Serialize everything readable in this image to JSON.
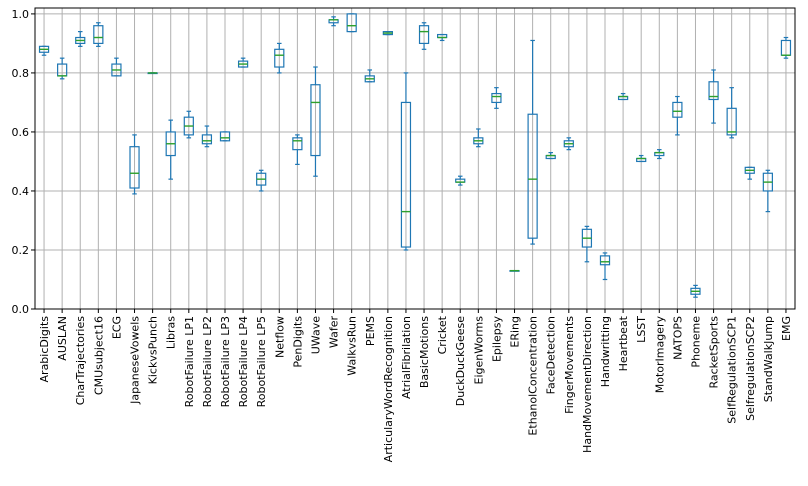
{
  "chart_data": {
    "type": "box",
    "ylim": [
      0.0,
      1.02
    ],
    "yticks": [
      "0.0",
      "0.2",
      "0.4",
      "0.6",
      "0.8",
      "1.0"
    ],
    "grid": true,
    "colors": {
      "box": "#1f77b4",
      "median": "#2ca02c",
      "grid": "#b0b0b0",
      "axis": "#000000"
    },
    "categories": [
      "ArabicDigits",
      "AUSLAN",
      "CharTrajectories",
      "CMUsubject16",
      "ECG",
      "JapaneseVowels",
      "KickvsPunch",
      "Libras",
      "RobotFailure LP1",
      "RobotFailure LP2",
      "RobotFailure LP3",
      "RobotFailure LP4",
      "RobotFailure LP5",
      "Netflow",
      "PenDigits",
      "UWave",
      "Wafer",
      "WalkvsRun",
      "PEMS",
      "ArticularyWordRecognition",
      "AtrialFibrilation",
      "BasicMotions",
      "Cricket",
      "DuckDuckGeese",
      "EigenWorms",
      "Epilepsy",
      "ERing",
      "EthanolConcentration",
      "FaceDetection",
      "FingerMovements",
      "HandMovementDirection",
      "Handwritting",
      "Heartbeat",
      "LSST",
      "MotorImagery",
      "NATOPS",
      "Phoneme",
      "RacketSports",
      "SelfRegulationSCP1",
      "SelfregulationSCP2",
      "StandWalkJump",
      "EMG"
    ],
    "boxes": [
      [
        0.86,
        0.87,
        0.88,
        0.89,
        0.89
      ],
      [
        0.78,
        0.79,
        0.79,
        0.83,
        0.85
      ],
      [
        0.89,
        0.9,
        0.91,
        0.92,
        0.94
      ],
      [
        0.89,
        0.9,
        0.92,
        0.96,
        0.97
      ],
      [
        0.79,
        0.79,
        0.81,
        0.83,
        0.85
      ],
      [
        0.39,
        0.41,
        0.46,
        0.55,
        0.59
      ],
      [
        0.8,
        0.8,
        0.8,
        0.8,
        0.8
      ],
      [
        0.44,
        0.52,
        0.56,
        0.6,
        0.64
      ],
      [
        0.58,
        0.59,
        0.62,
        0.65,
        0.67
      ],
      [
        0.55,
        0.56,
        0.57,
        0.59,
        0.62
      ],
      [
        0.57,
        0.57,
        0.58,
        0.6,
        0.6
      ],
      [
        0.82,
        0.82,
        0.83,
        0.84,
        0.85
      ],
      [
        0.4,
        0.42,
        0.44,
        0.46,
        0.47
      ],
      [
        0.8,
        0.82,
        0.86,
        0.88,
        0.9
      ],
      [
        0.49,
        0.54,
        0.57,
        0.58,
        0.59
      ],
      [
        0.45,
        0.52,
        0.7,
        0.76,
        0.82
      ],
      [
        0.96,
        0.97,
        0.98,
        0.98,
        0.99
      ],
      [
        0.94,
        0.94,
        0.96,
        1.0,
        1.0
      ],
      [
        0.77,
        0.77,
        0.78,
        0.79,
        0.81
      ],
      [
        0.93,
        0.93,
        0.935,
        0.94,
        0.94
      ],
      [
        0.2,
        0.21,
        0.33,
        0.7,
        0.8
      ],
      [
        0.88,
        0.9,
        0.94,
        0.96,
        0.97
      ],
      [
        0.91,
        0.92,
        0.92,
        0.93,
        0.93
      ],
      [
        0.42,
        0.43,
        0.43,
        0.44,
        0.45
      ],
      [
        0.55,
        0.56,
        0.57,
        0.58,
        0.61
      ],
      [
        0.68,
        0.7,
        0.72,
        0.73,
        0.75
      ],
      [
        0.13,
        0.13,
        0.13,
        0.13,
        0.13
      ],
      [
        0.22,
        0.24,
        0.44,
        0.66,
        0.91
      ],
      [
        0.51,
        0.51,
        0.52,
        0.52,
        0.53
      ],
      [
        0.54,
        0.55,
        0.56,
        0.57,
        0.58
      ],
      [
        0.16,
        0.21,
        0.24,
        0.27,
        0.28
      ],
      [
        0.1,
        0.15,
        0.16,
        0.18,
        0.19
      ],
      [
        0.71,
        0.71,
        0.72,
        0.72,
        0.73
      ],
      [
        0.5,
        0.5,
        0.51,
        0.51,
        0.52
      ],
      [
        0.51,
        0.52,
        0.53,
        0.53,
        0.54
      ],
      [
        0.59,
        0.65,
        0.67,
        0.7,
        0.72
      ],
      [
        0.04,
        0.05,
        0.06,
        0.07,
        0.08
      ],
      [
        0.63,
        0.71,
        0.72,
        0.77,
        0.81
      ],
      [
        0.58,
        0.59,
        0.6,
        0.68,
        0.75
      ],
      [
        0.44,
        0.46,
        0.47,
        0.48,
        0.48
      ],
      [
        0.33,
        0.4,
        0.43,
        0.46,
        0.47
      ],
      [
        0.85,
        0.86,
        0.86,
        0.91,
        0.92
      ]
    ]
  }
}
